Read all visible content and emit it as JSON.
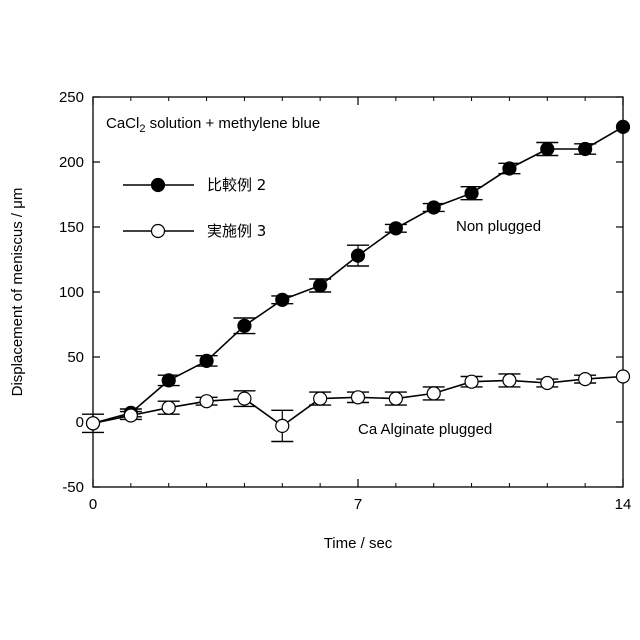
{
  "chart_data": {
    "type": "line",
    "xlabel": "Time / sec",
    "ylabel": "Displacement of meniscus / μm",
    "xlim": [
      0,
      14
    ],
    "ylim": [
      -50,
      250
    ],
    "xticks": [
      0,
      7,
      14
    ],
    "xminor": [
      1,
      2,
      3,
      4,
      5,
      6,
      8,
      9,
      10,
      11,
      12,
      13
    ],
    "yticks": [
      -50,
      0,
      50,
      100,
      150,
      200,
      250
    ],
    "grid": false,
    "legend_position": "upper-left",
    "title_main": "CaCl",
    "title_sub": "2",
    "title_rest": " solution + methylene blue",
    "annotations": {
      "upper": "Non plugged",
      "lower": "Ca Alginate plugged"
    },
    "series": [
      {
        "name": "比較例 2",
        "marker": "filled-circle",
        "color": "#000000",
        "x": [
          0,
          1,
          2,
          3,
          4,
          5,
          6,
          7,
          8,
          9,
          10,
          11,
          12,
          13,
          14
        ],
        "y": [
          -1,
          7,
          32,
          47,
          74,
          94,
          105,
          128,
          149,
          165,
          176,
          195,
          210,
          210,
          227
        ],
        "err": [
          0,
          3,
          4,
          4,
          6,
          3,
          5,
          8,
          3,
          3,
          5,
          4,
          5,
          4,
          0
        ]
      },
      {
        "name": "実施例 3",
        "marker": "open-circle",
        "color": "#000000",
        "x": [
          0,
          1,
          2,
          3,
          4,
          5,
          6,
          7,
          8,
          9,
          10,
          11,
          12,
          13,
          14
        ],
        "y": [
          -1,
          5,
          11,
          16,
          18,
          -3,
          18,
          19,
          18,
          22,
          31,
          32,
          30,
          33,
          35
        ],
        "err": [
          7,
          3,
          5,
          3,
          6,
          12,
          5,
          4,
          5,
          5,
          4,
          5,
          3,
          3,
          0
        ]
      }
    ]
  }
}
